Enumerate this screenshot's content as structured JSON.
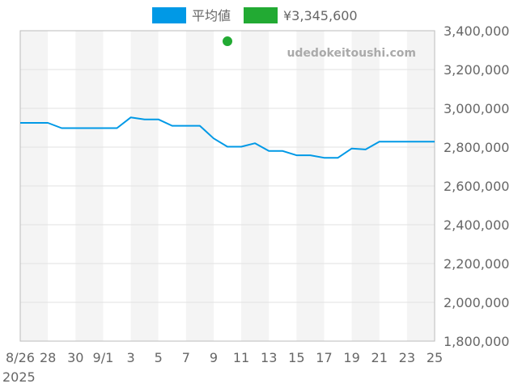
{
  "chart_data": {
    "type": "line",
    "watermark": "udedokeitoushi.com",
    "legend": {
      "placement": "top-center",
      "items": [
        {
          "label": "平均値",
          "color": "#0099e6"
        },
        {
          "label": "¥3,345,600",
          "color": "#22aa33"
        }
      ]
    },
    "x_tick_labels": [
      "8/26",
      "28",
      "30",
      "9/1",
      "3",
      "5",
      "7",
      "9",
      "11",
      "13",
      "15",
      "17",
      "19",
      "21",
      "23",
      "25"
    ],
    "x_sub_label": "2025",
    "y_tick_labels": [
      "3,400,000",
      "3,200,000",
      "3,000,000",
      "2,800,000",
      "2,600,000",
      "2,400,000",
      "2,200,000",
      "2,000,000",
      "1,800,000"
    ],
    "ylim": [
      1800000,
      3400000
    ],
    "y_ticks": [
      3400000,
      3200000,
      3000000,
      2800000,
      2600000,
      2400000,
      2200000,
      2000000,
      1800000
    ],
    "x_range_days": [
      0,
      30
    ],
    "grid": true,
    "series": [
      {
        "name": "平均値",
        "color": "#0099e6",
        "type": "line",
        "x": [
          0,
          1,
          2,
          3,
          4,
          5,
          6,
          7,
          8,
          9,
          10,
          11,
          12,
          13,
          14,
          15,
          16,
          17,
          18,
          19,
          20,
          21,
          22,
          23,
          24,
          25,
          26,
          27,
          28,
          29,
          30
        ],
        "values": [
          2925000,
          2925000,
          2925000,
          2898000,
          2898000,
          2898000,
          2898000,
          2898000,
          2953000,
          2943000,
          2943000,
          2910000,
          2910000,
          2910000,
          2845000,
          2802000,
          2802000,
          2820000,
          2780000,
          2780000,
          2758000,
          2758000,
          2745000,
          2745000,
          2793000,
          2788000,
          2828000,
          2828000,
          2828000,
          2828000,
          2828000
        ]
      },
      {
        "name": "¥3,345,600",
        "color": "#22aa33",
        "type": "scatter",
        "x": [
          15
        ],
        "values": [
          3345600
        ]
      }
    ]
  }
}
